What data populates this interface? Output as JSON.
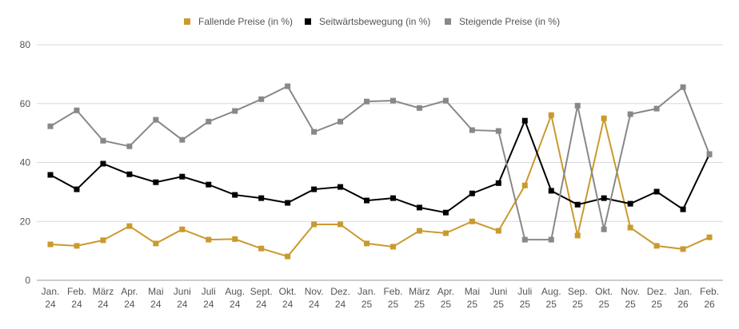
{
  "chart_data": {
    "type": "line",
    "title": "",
    "xlabel": "",
    "ylabel": "",
    "ylim": [
      0,
      80
    ],
    "yticks": [
      0,
      20,
      40,
      60,
      80
    ],
    "grid": true,
    "legend_position": "top-center",
    "categories": [
      [
        "Jan.",
        "24"
      ],
      [
        "Feb.",
        "24"
      ],
      [
        "März",
        "24"
      ],
      [
        "Apr.",
        "24"
      ],
      [
        "Mai",
        "24"
      ],
      [
        "Juni",
        "24"
      ],
      [
        "Juli",
        "24"
      ],
      [
        "Aug.",
        "24"
      ],
      [
        "Sept.",
        "24"
      ],
      [
        "Okt.",
        "24"
      ],
      [
        "Nov.",
        "24"
      ],
      [
        "Dez.",
        "24"
      ],
      [
        "Jan.",
        "25"
      ],
      [
        "Feb.",
        "25"
      ],
      [
        "März",
        "25"
      ],
      [
        "Apr.",
        "25"
      ],
      [
        "Mai",
        "25"
      ],
      [
        "Juni",
        "25"
      ],
      [
        "Juli",
        "25"
      ],
      [
        "Aug.",
        "25"
      ],
      [
        "Sep.",
        "25"
      ],
      [
        "Okt.",
        "25"
      ],
      [
        "Nov.",
        "25"
      ],
      [
        "Dez.",
        "25"
      ],
      [
        "Jan.",
        "26"
      ],
      [
        "Feb.",
        "26"
      ]
    ],
    "series": [
      {
        "name": "Fallende Preise (in %)",
        "color": "#C99A2E",
        "values": [
          12.2,
          11.7,
          13.6,
          18.4,
          12.5,
          17.3,
          13.8,
          14.0,
          10.8,
          8.1,
          19.0,
          19.0,
          12.5,
          11.4,
          16.8,
          16.0,
          20.0,
          16.8,
          32.2,
          56.1,
          15.2,
          55.0,
          17.9,
          11.7,
          10.6,
          14.6
        ]
      },
      {
        "name": "Seitwärtsbewegung (in %)",
        "color": "#000000",
        "values": [
          35.8,
          30.9,
          39.6,
          36.0,
          33.3,
          35.2,
          32.5,
          29.0,
          27.9,
          26.3,
          30.9,
          31.7,
          27.1,
          27.9,
          24.7,
          23.0,
          29.5,
          33.0,
          54.2,
          30.4,
          25.7,
          27.9,
          26.0,
          30.1,
          24.1,
          42.8
        ]
      },
      {
        "name": "Steigende Preise (in %)",
        "color": "#888888",
        "values": [
          52.3,
          57.7,
          47.4,
          45.5,
          54.5,
          47.7,
          53.9,
          57.5,
          61.5,
          65.9,
          50.4,
          53.9,
          60.7,
          61.0,
          58.5,
          61.0,
          51.0,
          50.7,
          13.8,
          13.8,
          59.3,
          17.3,
          56.4,
          58.3,
          65.6,
          42.8
        ]
      }
    ]
  }
}
